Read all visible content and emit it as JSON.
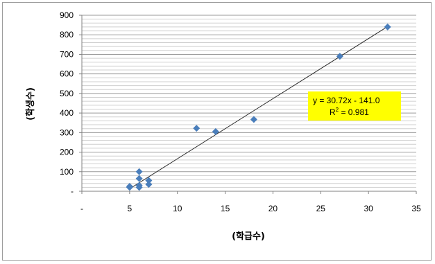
{
  "chart_data": {
    "type": "scatter",
    "xlabel": "(학급수)",
    "ylabel": "(학생수)",
    "xlim": [
      0,
      35
    ],
    "ylim": [
      0,
      900
    ],
    "x_ticks": [
      0,
      5,
      10,
      15,
      20,
      25,
      30,
      35
    ],
    "x_tick_labels": [
      "-",
      "5",
      "10",
      "15",
      "20",
      "25",
      "30",
      "35"
    ],
    "y_ticks": [
      0,
      100,
      200,
      300,
      400,
      500,
      600,
      700,
      800,
      900
    ],
    "y_tick_labels": [
      "-",
      "100",
      "200",
      "300",
      "400",
      "500",
      "600",
      "700",
      "800",
      "900"
    ],
    "y_minor_step": 20,
    "grid": true,
    "marker": "diamond",
    "marker_color": "#4a7ebb",
    "points": [
      {
        "x": 5,
        "y": 25
      },
      {
        "x": 5,
        "y": 20
      },
      {
        "x": 6,
        "y": 100
      },
      {
        "x": 6,
        "y": 65
      },
      {
        "x": 6,
        "y": 30
      },
      {
        "x": 6,
        "y": 20
      },
      {
        "x": 7,
        "y": 55
      },
      {
        "x": 7,
        "y": 35
      },
      {
        "x": 12,
        "y": 322
      },
      {
        "x": 14,
        "y": 305
      },
      {
        "x": 18,
        "y": 367
      },
      {
        "x": 27,
        "y": 690
      },
      {
        "x": 32,
        "y": 840
      }
    ],
    "trendline": {
      "slope": 30.72,
      "intercept": -141.0,
      "x_range": [
        5,
        32
      ],
      "color": "#2b2b2b"
    },
    "annotation": {
      "equation": "y = 30.72x - 141.0",
      "r2_prefix": "R",
      "r2_sup": "2",
      "r2_value": " = 0.981",
      "background": "#ffff00"
    }
  }
}
